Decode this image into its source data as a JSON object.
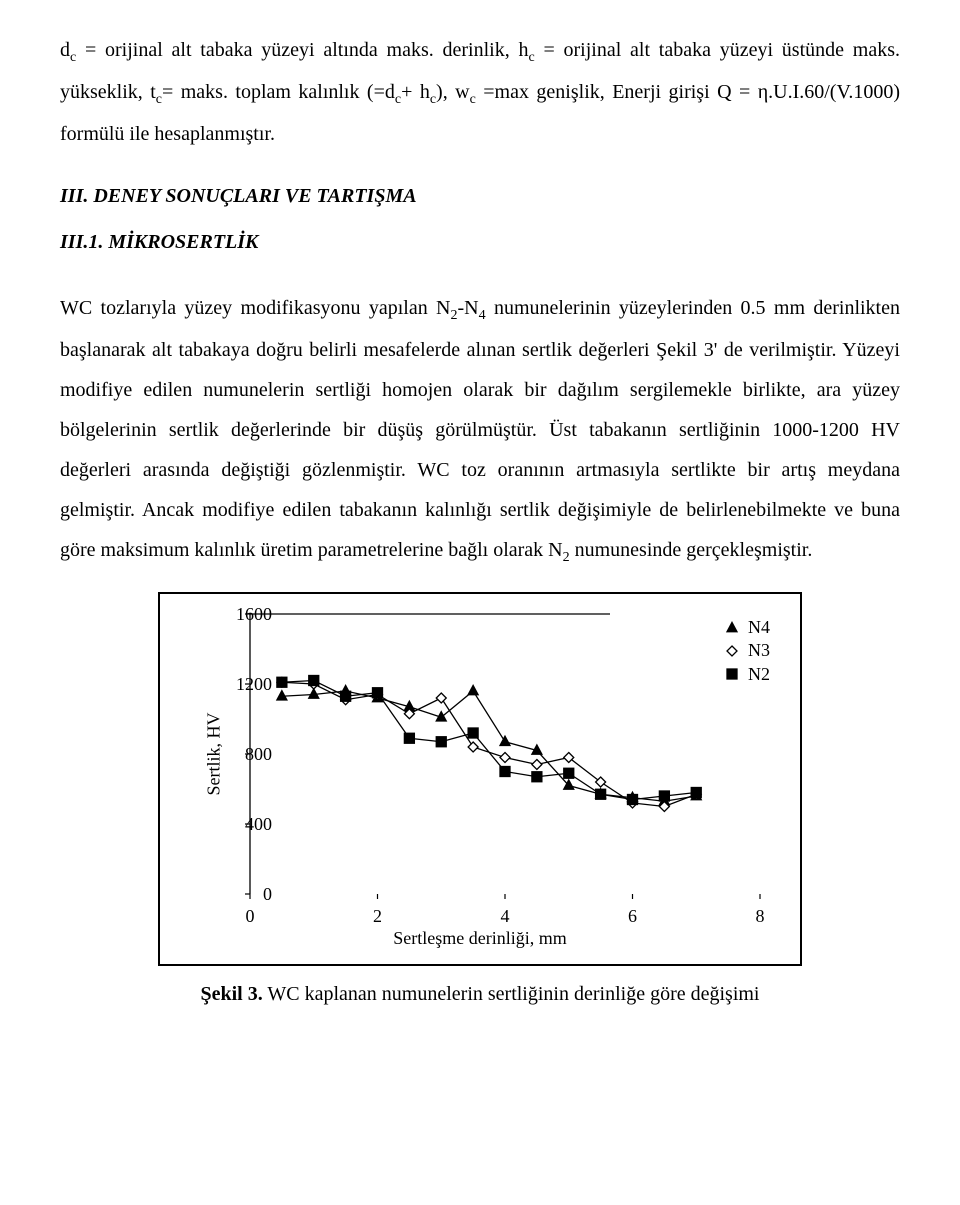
{
  "text": {
    "para1_pre": "d",
    "para1_sub1": "c",
    "para1_a": " = orijinal alt tabaka yüzeyi altında maks. derinlik, h",
    "para1_sub2": "c",
    "para1_b": " = orijinal alt tabaka yüzeyi üstünde maks. yükseklik, t",
    "para1_sub3": "c",
    "para1_c": "= maks. toplam kalınlık (=d",
    "para1_sub4": "c",
    "para1_d": "+ h",
    "para1_sub5": "c",
    "para1_e": "), w",
    "para1_sub6": "c",
    "para1_f": " =max genişlik, Enerji girişi Q = η.U.I.60/(V.1000) formülü ile hesaplanmıştır.",
    "heading": "III. DENEY SONUÇLARI VE TARTIŞMA",
    "subheading": "III.1. MİKROSERTLİK",
    "para2_a": "WC tozlarıyla yüzey modifikasyonu yapılan N",
    "para2_sub1": "2",
    "para2_b": "-N",
    "para2_sub2": "4",
    "para2_c": " numunelerinin yüzeylerinden 0.5 mm derinlikten başlanarak alt tabakaya doğru belirli mesafelerde alınan sertlik değerleri Şekil 3' de verilmiştir. Yüzeyi modifiye edilen numunelerin sertliği homojen olarak bir dağılım sergilemekle birlikte, ara yüzey bölgelerinin sertlik değerlerinde bir düşüş görülmüştür. Üst tabakanın sertliğinin 1000-1200 HV değerleri arasında değiştiği gözlenmiştir. WC toz oranının artmasıyla sertlikte bir artış meydana gelmiştir. Ancak modifiye edilen tabakanın kalınlığı sertlik değişimiyle de belirlenebilmekte ve buna göre maksimum kalınlık üretim parametrelerine bağlı olarak N",
    "para2_sub3": "2",
    "para2_d": " numunesinde gerçekleşmiştir.",
    "caption_label": "Şekil 3.",
    "caption_text": " WC kaplanan numunelerin sertliğinin derinliğe göre değişimi"
  },
  "chart": {
    "type": "line-scatter",
    "background_color": "#ffffff",
    "border_color": "#000000",
    "line_color": "#000000",
    "line_width": 1.3,
    "x_label": "Sertleşme derinliği, mm",
    "y_label": "Sertlik, HV",
    "x_ticks": [
      0,
      2,
      4,
      6,
      8
    ],
    "y_ticks": [
      0,
      400,
      800,
      1200,
      1600
    ],
    "xlim": [
      0,
      8
    ],
    "ylim": [
      0,
      1600
    ],
    "tick_len": 5,
    "label_fontsize": 18,
    "marker_size": 10,
    "legend": {
      "position": "top-right",
      "items": [
        {
          "label": "N4",
          "marker": "triangle"
        },
        {
          "label": "N3",
          "marker": "diamond"
        },
        {
          "label": "N2",
          "marker": "square"
        }
      ]
    },
    "series": {
      "N4": {
        "marker": "triangle",
        "x": [
          0.5,
          1.0,
          1.5,
          2.0,
          2.5,
          3.0,
          3.5,
          4.0,
          4.5,
          5.0,
          5.5,
          6.0,
          6.5,
          7.0
        ],
        "y": [
          1130,
          1140,
          1160,
          1120,
          1070,
          1010,
          1160,
          870,
          820,
          620,
          570,
          550,
          530,
          560
        ]
      },
      "N3": {
        "marker": "diamond",
        "x": [
          0.5,
          1.0,
          1.5,
          2.0,
          2.5,
          3.0,
          3.5,
          4.0,
          4.5,
          5.0,
          5.5,
          6.0,
          6.5,
          7.0
        ],
        "y": [
          1210,
          1200,
          1110,
          1140,
          1030,
          1120,
          840,
          780,
          740,
          780,
          640,
          520,
          500,
          570
        ]
      },
      "N2": {
        "marker": "square",
        "x": [
          0.5,
          1.0,
          1.5,
          2.0,
          2.5,
          3.0,
          3.5,
          4.0,
          4.5,
          5.0,
          5.5,
          6.0,
          6.5,
          7.0
        ],
        "y": [
          1210,
          1220,
          1130,
          1150,
          890,
          870,
          920,
          700,
          670,
          690,
          570,
          540,
          560,
          580
        ]
      }
    }
  }
}
